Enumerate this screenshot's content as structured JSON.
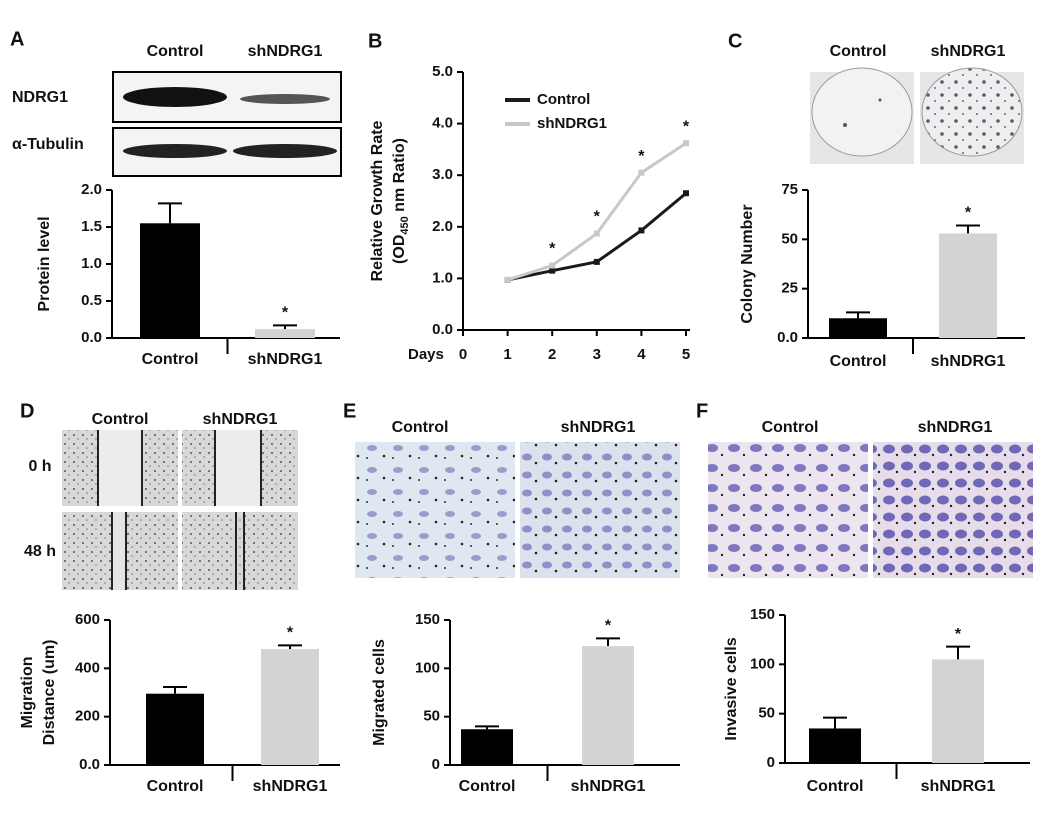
{
  "chart_data": [
    {
      "type": "bar",
      "panel": "A",
      "image_columns": [
        "Control",
        "shNDRG1"
      ],
      "image_rows": [
        "NDRG1",
        "α-Tubulin"
      ],
      "ylabel": [
        "Protein level"
      ],
      "categories": [
        "Control",
        "shNDRG1"
      ],
      "values": [
        1.55,
        0.12
      ],
      "errors": [
        0.27,
        0.05
      ],
      "significance": [
        null,
        "*"
      ],
      "colors": [
        "#000000",
        "#d3d3d3"
      ],
      "ylim": [
        0,
        2.0
      ],
      "yticks": [
        {
          "value": 0,
          "label": "0.0"
        },
        {
          "value": 0.5,
          "label": "0.5"
        },
        {
          "value": 1,
          "label": "1.0"
        },
        {
          "value": 1.5,
          "label": "1.5"
        },
        {
          "value": 2,
          "label": "2.0"
        }
      ]
    },
    {
      "type": "line",
      "panel": "B",
      "ylabel": {
        "line1": "Relative Growth Rate",
        "line2": [
          "(OD",
          "450",
          " nm Ratio)"
        ]
      },
      "xlabel": "Days",
      "x": [
        1,
        2,
        3,
        4,
        5
      ],
      "xlim": [
        0,
        5
      ],
      "xticks": [
        0,
        1,
        2,
        3,
        4,
        5
      ],
      "series": [
        {
          "name": "Control",
          "color": "#1a1a1a",
          "values": [
            0.97,
            1.15,
            1.32,
            1.93,
            2.65
          ]
        },
        {
          "name": "shNDRG1",
          "color": "#c8c8c8",
          "values": [
            0.97,
            1.25,
            1.87,
            3.05,
            3.62
          ]
        }
      ],
      "significance": [
        null,
        "*",
        "*",
        "*",
        "*"
      ],
      "ylim": [
        0,
        5
      ],
      "yticks": [
        {
          "value": 0,
          "label": "0.0"
        },
        {
          "value": 1,
          "label": "1.0"
        },
        {
          "value": 2,
          "label": "2.0"
        },
        {
          "value": 3,
          "label": "3.0"
        },
        {
          "value": 4,
          "label": "4.0"
        },
        {
          "value": 5,
          "label": "5.0"
        }
      ]
    },
    {
      "type": "bar",
      "panel": "C",
      "image_columns": [
        "Control",
        "shNDRG1"
      ],
      "ylabel": [
        "Colony Number"
      ],
      "categories": [
        "Control",
        "shNDRG1"
      ],
      "values": [
        10,
        53
      ],
      "errors": [
        3,
        4
      ],
      "significance": [
        null,
        "*"
      ],
      "colors": [
        "#000000",
        "#d3d3d3"
      ],
      "ylim": [
        0,
        75
      ],
      "yticks": [
        {
          "value": 0,
          "label": "0.0"
        },
        25,
        50,
        75
      ]
    },
    {
      "type": "bar",
      "panel": "D",
      "image_columns": [
        "Control",
        "shNDRG1"
      ],
      "image_rows": [
        "0 h",
        "48 h"
      ],
      "ylabel": [
        "Migration",
        "Distance (um)"
      ],
      "categories": [
        "Control",
        "shNDRG1"
      ],
      "values": [
        295,
        480
      ],
      "errors": [
        28,
        15
      ],
      "significance": [
        null,
        "*"
      ],
      "colors": [
        "#000000",
        "#d3d3d3"
      ],
      "ylim": [
        0,
        600
      ],
      "yticks": [
        {
          "value": 0,
          "label": "0.0"
        },
        200,
        400,
        600
      ]
    },
    {
      "type": "bar",
      "panel": "E",
      "image_columns": [
        "Control",
        "shNDRG1"
      ],
      "ylabel": [
        "Migrated cells"
      ],
      "categories": [
        "Control",
        "shNDRG1"
      ],
      "values": [
        37,
        123
      ],
      "errors": [
        3,
        8
      ],
      "significance": [
        null,
        "*"
      ],
      "colors": [
        "#000000",
        "#d3d3d3"
      ],
      "ylim": [
        0,
        150
      ],
      "yticks": [
        0,
        50,
        100,
        150
      ]
    },
    {
      "type": "bar",
      "panel": "F",
      "image_columns": [
        "Control",
        "shNDRG1"
      ],
      "ylabel": [
        "Invasive cells"
      ],
      "categories": [
        "Control",
        "shNDRG1"
      ],
      "values": [
        35,
        105
      ],
      "errors": [
        11,
        13
      ],
      "significance": [
        null,
        "*"
      ],
      "colors": [
        "#000000",
        "#d3d3d3"
      ],
      "ylim": [
        0,
        150
      ],
      "yticks": [
        0,
        50,
        100,
        150
      ]
    }
  ]
}
